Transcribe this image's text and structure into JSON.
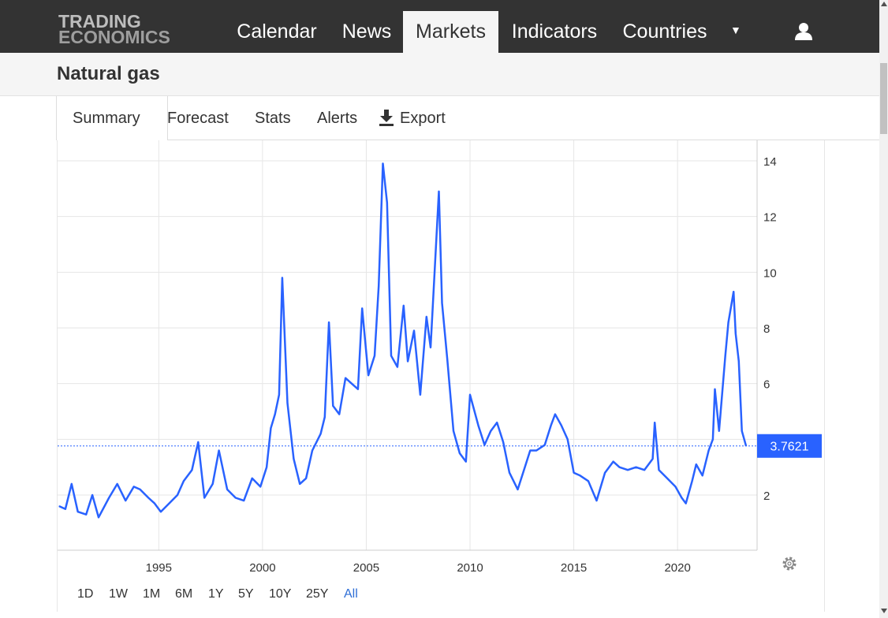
{
  "logo": {
    "line1": "TRADING",
    "line2": "ECONOMICS"
  },
  "nav": {
    "items": [
      "Calendar",
      "News",
      "Markets",
      "Indicators",
      "Countries"
    ],
    "active": "Markets"
  },
  "page": {
    "title": "Natural gas"
  },
  "tabs": {
    "items": [
      "Summary",
      "Forecast",
      "Stats",
      "Alerts",
      "Export"
    ],
    "active": "Summary"
  },
  "range_buttons": {
    "items": [
      "1D",
      "1W",
      "1M",
      "6M",
      "1Y",
      "5Y",
      "10Y",
      "25Y",
      "All"
    ],
    "active": "All"
  },
  "colors": {
    "line": "#2962ff",
    "accent": "#2962ff",
    "nav_bg": "#333333",
    "active_range": "#2e6ed6"
  },
  "chart_data": {
    "type": "line",
    "title": "",
    "xlabel": "",
    "ylabel": "",
    "xlim": [
      1990.2,
      2023.5
    ],
    "ylim": [
      0,
      14.1
    ],
    "y_ticks": [
      2,
      4,
      6,
      8,
      10,
      12,
      14
    ],
    "y_tick_labels": [
      "2",
      "",
      "6",
      "8",
      "10",
      "12",
      "14"
    ],
    "x_ticks": [
      1995,
      2000,
      2005,
      2010,
      2015,
      2020
    ],
    "grid": true,
    "last_value": 3.7621,
    "last_value_label": "3.7621",
    "series": [
      {
        "values": [
          [
            1990.2,
            1.6
          ],
          [
            1990.5,
            1.5
          ],
          [
            1990.8,
            2.4
          ],
          [
            1991.1,
            1.4
          ],
          [
            1991.5,
            1.3
          ],
          [
            1991.8,
            2.0
          ],
          [
            1992.1,
            1.2
          ],
          [
            1992.6,
            1.9
          ],
          [
            1993.0,
            2.4
          ],
          [
            1993.4,
            1.8
          ],
          [
            1993.8,
            2.3
          ],
          [
            1994.1,
            2.2
          ],
          [
            1994.5,
            1.9
          ],
          [
            1994.8,
            1.7
          ],
          [
            1995.1,
            1.4
          ],
          [
            1995.5,
            1.7
          ],
          [
            1995.9,
            2.0
          ],
          [
            1996.2,
            2.5
          ],
          [
            1996.6,
            2.9
          ],
          [
            1996.9,
            3.9
          ],
          [
            1997.2,
            1.9
          ],
          [
            1997.6,
            2.4
          ],
          [
            1997.9,
            3.6
          ],
          [
            1998.3,
            2.2
          ],
          [
            1998.7,
            1.9
          ],
          [
            1999.1,
            1.8
          ],
          [
            1999.5,
            2.6
          ],
          [
            1999.9,
            2.3
          ],
          [
            2000.2,
            3.0
          ],
          [
            2000.4,
            4.4
          ],
          [
            2000.6,
            4.9
          ],
          [
            2000.8,
            5.6
          ],
          [
            2000.95,
            9.8
          ],
          [
            2001.2,
            5.3
          ],
          [
            2001.5,
            3.3
          ],
          [
            2001.8,
            2.4
          ],
          [
            2002.1,
            2.6
          ],
          [
            2002.4,
            3.6
          ],
          [
            2002.8,
            4.2
          ],
          [
            2003.0,
            4.8
          ],
          [
            2003.2,
            8.2
          ],
          [
            2003.4,
            5.2
          ],
          [
            2003.7,
            4.9
          ],
          [
            2004.0,
            6.2
          ],
          [
            2004.3,
            6.0
          ],
          [
            2004.6,
            5.8
          ],
          [
            2004.8,
            8.7
          ],
          [
            2005.1,
            6.3
          ],
          [
            2005.4,
            7.0
          ],
          [
            2005.6,
            9.5
          ],
          [
            2005.8,
            13.9
          ],
          [
            2006.0,
            12.5
          ],
          [
            2006.2,
            7.0
          ],
          [
            2006.5,
            6.6
          ],
          [
            2006.8,
            8.8
          ],
          [
            2007.0,
            6.8
          ],
          [
            2007.3,
            7.9
          ],
          [
            2007.6,
            5.6
          ],
          [
            2007.9,
            8.4
          ],
          [
            2008.1,
            7.3
          ],
          [
            2008.5,
            12.9
          ],
          [
            2008.65,
            8.9
          ],
          [
            2008.9,
            6.9
          ],
          [
            2009.2,
            4.3
          ],
          [
            2009.5,
            3.5
          ],
          [
            2009.8,
            3.2
          ],
          [
            2010.0,
            5.6
          ],
          [
            2010.4,
            4.5
          ],
          [
            2010.7,
            3.8
          ],
          [
            2011.0,
            4.3
          ],
          [
            2011.3,
            4.6
          ],
          [
            2011.6,
            3.9
          ],
          [
            2011.9,
            2.8
          ],
          [
            2012.3,
            2.2
          ],
          [
            2012.6,
            2.9
          ],
          [
            2012.9,
            3.6
          ],
          [
            2013.2,
            3.6
          ],
          [
            2013.6,
            3.8
          ],
          [
            2013.9,
            4.5
          ],
          [
            2014.1,
            4.9
          ],
          [
            2014.4,
            4.5
          ],
          [
            2014.7,
            4.0
          ],
          [
            2015.0,
            2.8
          ],
          [
            2015.3,
            2.7
          ],
          [
            2015.7,
            2.5
          ],
          [
            2016.1,
            1.8
          ],
          [
            2016.5,
            2.8
          ],
          [
            2016.9,
            3.2
          ],
          [
            2017.2,
            3.0
          ],
          [
            2017.6,
            2.9
          ],
          [
            2018.0,
            3.0
          ],
          [
            2018.4,
            2.9
          ],
          [
            2018.8,
            3.3
          ],
          [
            2018.9,
            4.6
          ],
          [
            2019.1,
            2.9
          ],
          [
            2019.5,
            2.6
          ],
          [
            2019.9,
            2.3
          ],
          [
            2020.2,
            1.9
          ],
          [
            2020.4,
            1.7
          ],
          [
            2020.7,
            2.5
          ],
          [
            2020.9,
            3.1
          ],
          [
            2021.2,
            2.7
          ],
          [
            2021.5,
            3.6
          ],
          [
            2021.7,
            4.0
          ],
          [
            2021.8,
            5.8
          ],
          [
            2022.0,
            4.3
          ],
          [
            2022.3,
            7.0
          ],
          [
            2022.45,
            8.2
          ],
          [
            2022.7,
            9.3
          ],
          [
            2022.8,
            7.8
          ],
          [
            2022.95,
            6.8
          ],
          [
            2023.1,
            4.3
          ],
          [
            2023.3,
            3.7621
          ]
        ]
      }
    ]
  }
}
